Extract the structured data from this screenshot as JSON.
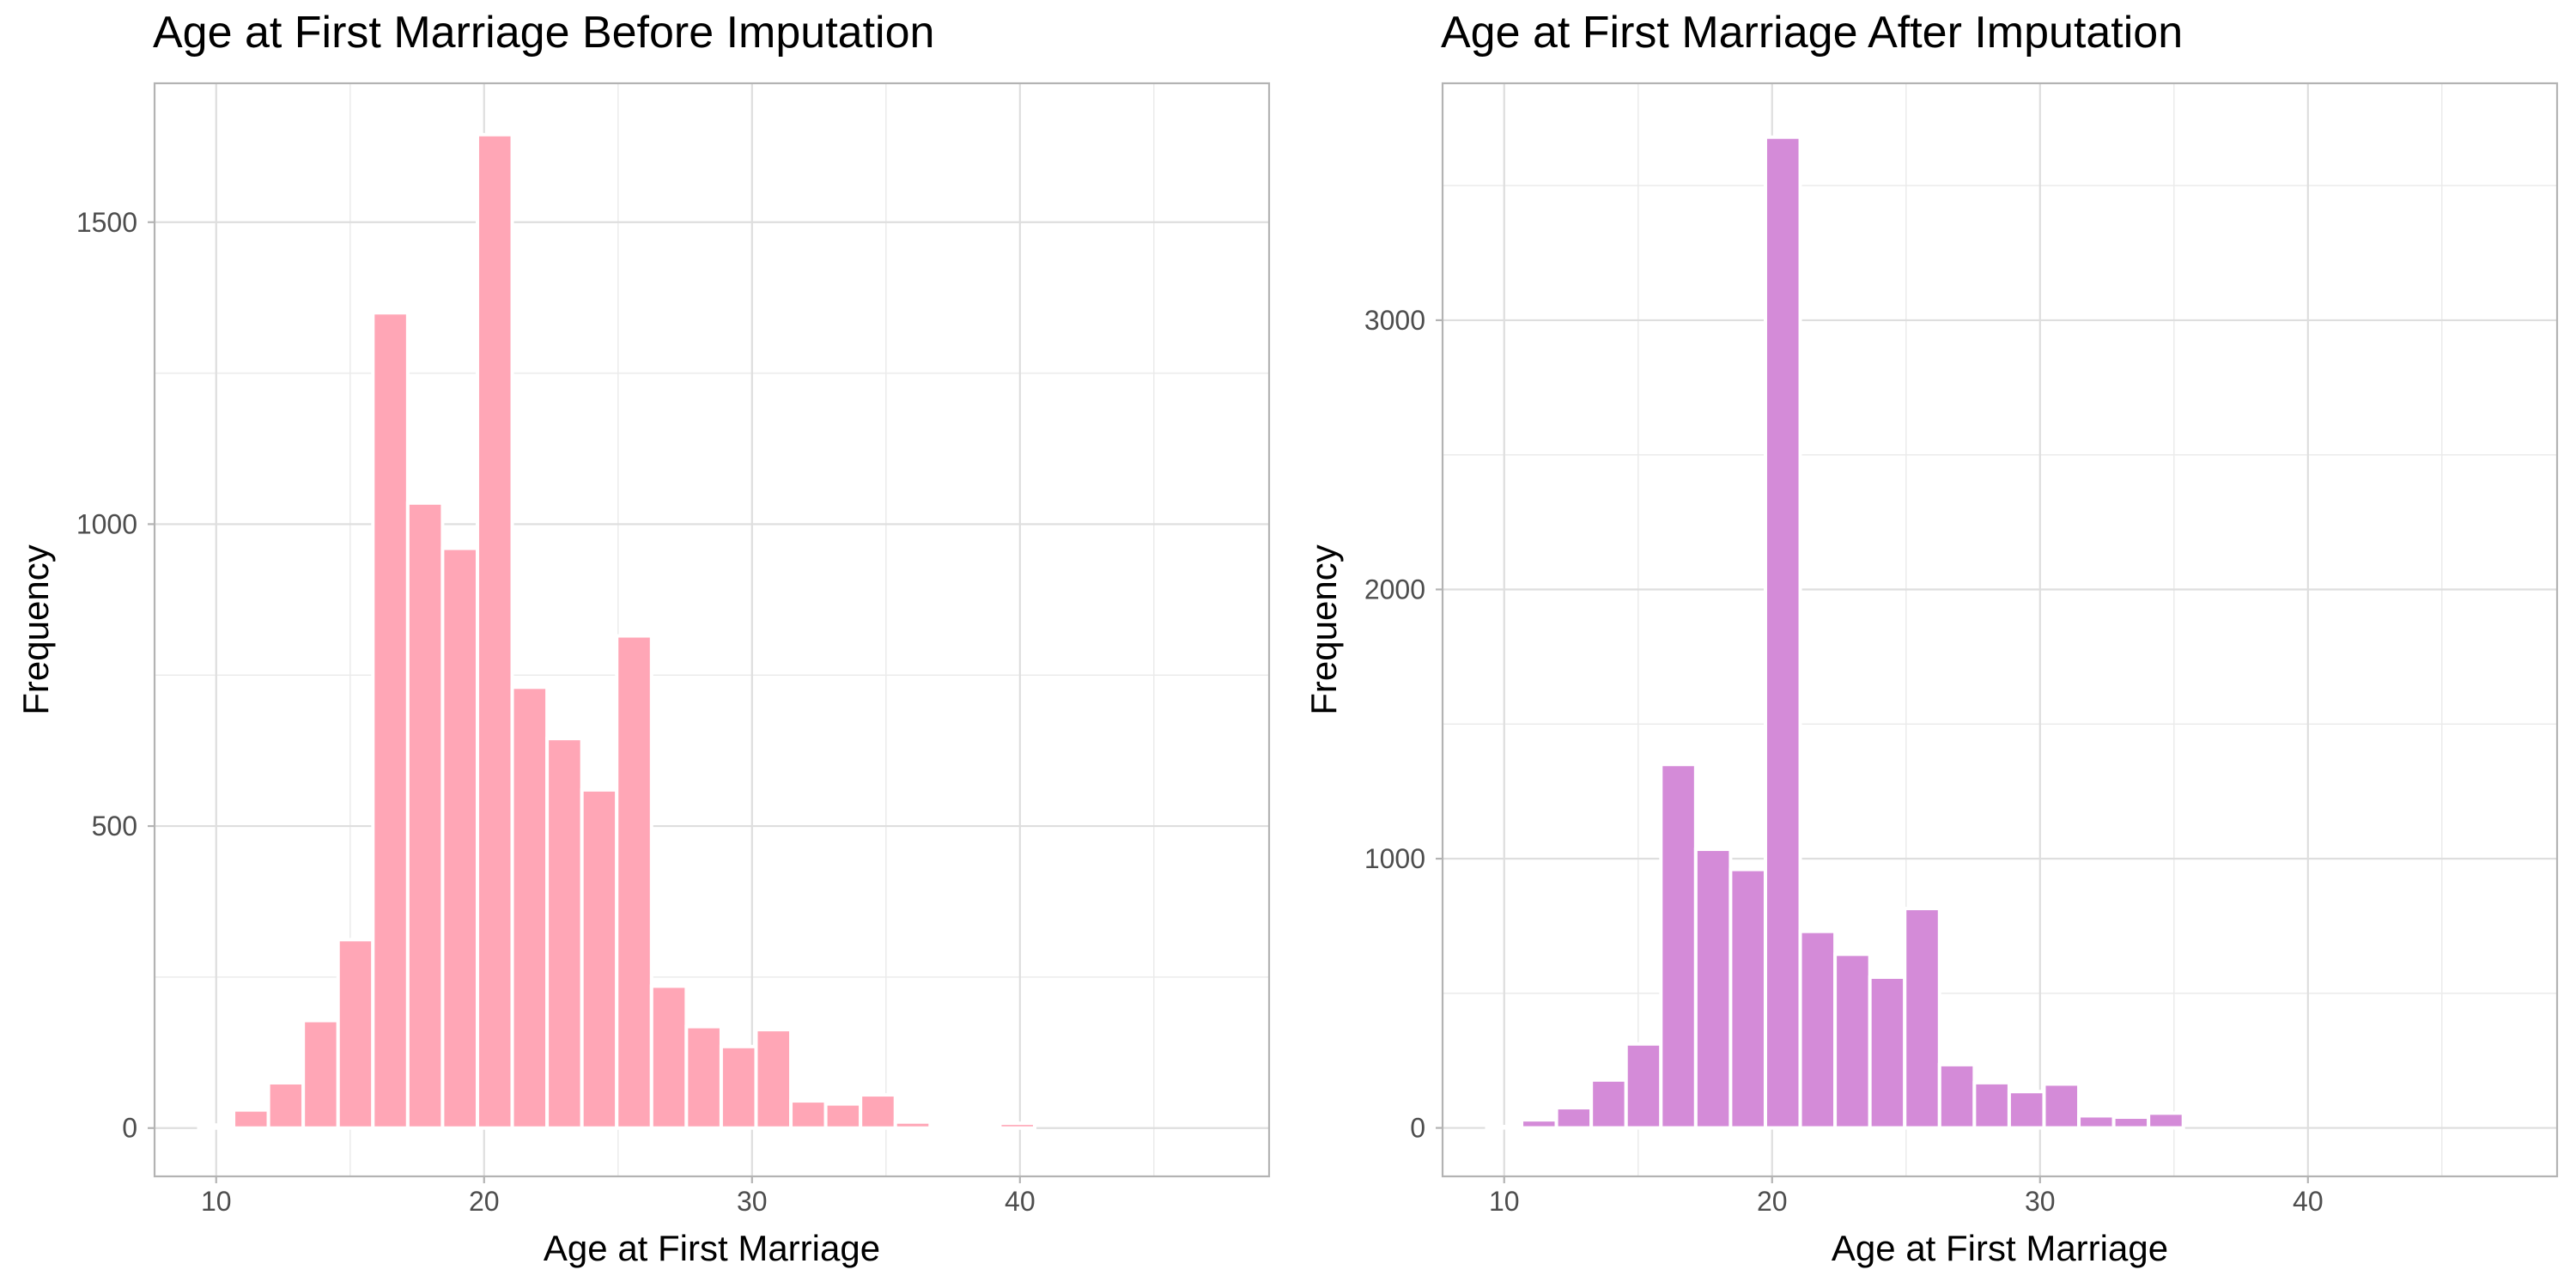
{
  "chart_data": [
    {
      "type": "bar",
      "title": "Age at First Marriage Before Imputation",
      "xlabel": "Age at First Marriage",
      "ylabel": "Frequency",
      "color": "#FFA6B6",
      "bin_width": 1.3,
      "x": [
        10.0,
        11.3,
        12.6,
        13.9,
        15.2,
        16.5,
        17.8,
        19.1,
        20.4,
        21.7,
        23.0,
        24.3,
        25.6,
        26.9,
        28.2,
        29.5,
        30.8,
        32.1,
        33.4,
        34.7,
        36.0,
        37.3,
        38.6,
        39.9
      ],
      "values": [
        5,
        30,
        75,
        178,
        312,
        1350,
        1035,
        960,
        1645,
        730,
        645,
        560,
        815,
        235,
        168,
        135,
        163,
        45,
        40,
        55,
        10,
        0,
        5,
        8
      ],
      "xlim": [
        7.7,
        49.3
      ],
      "ylim": [
        -80,
        1730
      ],
      "xticks": [
        "10",
        "20",
        "30",
        "40"
      ],
      "yticks": [
        "0",
        "500",
        "1000",
        "1500"
      ],
      "grid": true
    },
    {
      "type": "bar",
      "title": "Age at First Marriage After Imputation",
      "xlabel": "Age at First Marriage",
      "ylabel": "Frequency",
      "color": "#D48BD8",
      "bin_width": 1.3,
      "x": [
        10.0,
        11.3,
        12.6,
        13.9,
        15.2,
        16.5,
        17.8,
        19.1,
        20.4,
        21.7,
        23.0,
        24.3,
        25.6,
        26.9,
        28.2,
        29.5,
        30.8,
        32.1,
        33.4,
        34.7
      ],
      "values": [
        5,
        30,
        75,
        178,
        312,
        1350,
        1035,
        960,
        3680,
        730,
        645,
        560,
        815,
        235,
        168,
        135,
        163,
        45,
        40,
        55
      ],
      "xlim": [
        7.7,
        49.3
      ],
      "ylim": [
        -180,
        3880
      ],
      "xticks": [
        "10",
        "20",
        "30",
        "40"
      ],
      "yticks": [
        "0",
        "1000",
        "2000",
        "3000"
      ],
      "grid": true
    }
  ]
}
